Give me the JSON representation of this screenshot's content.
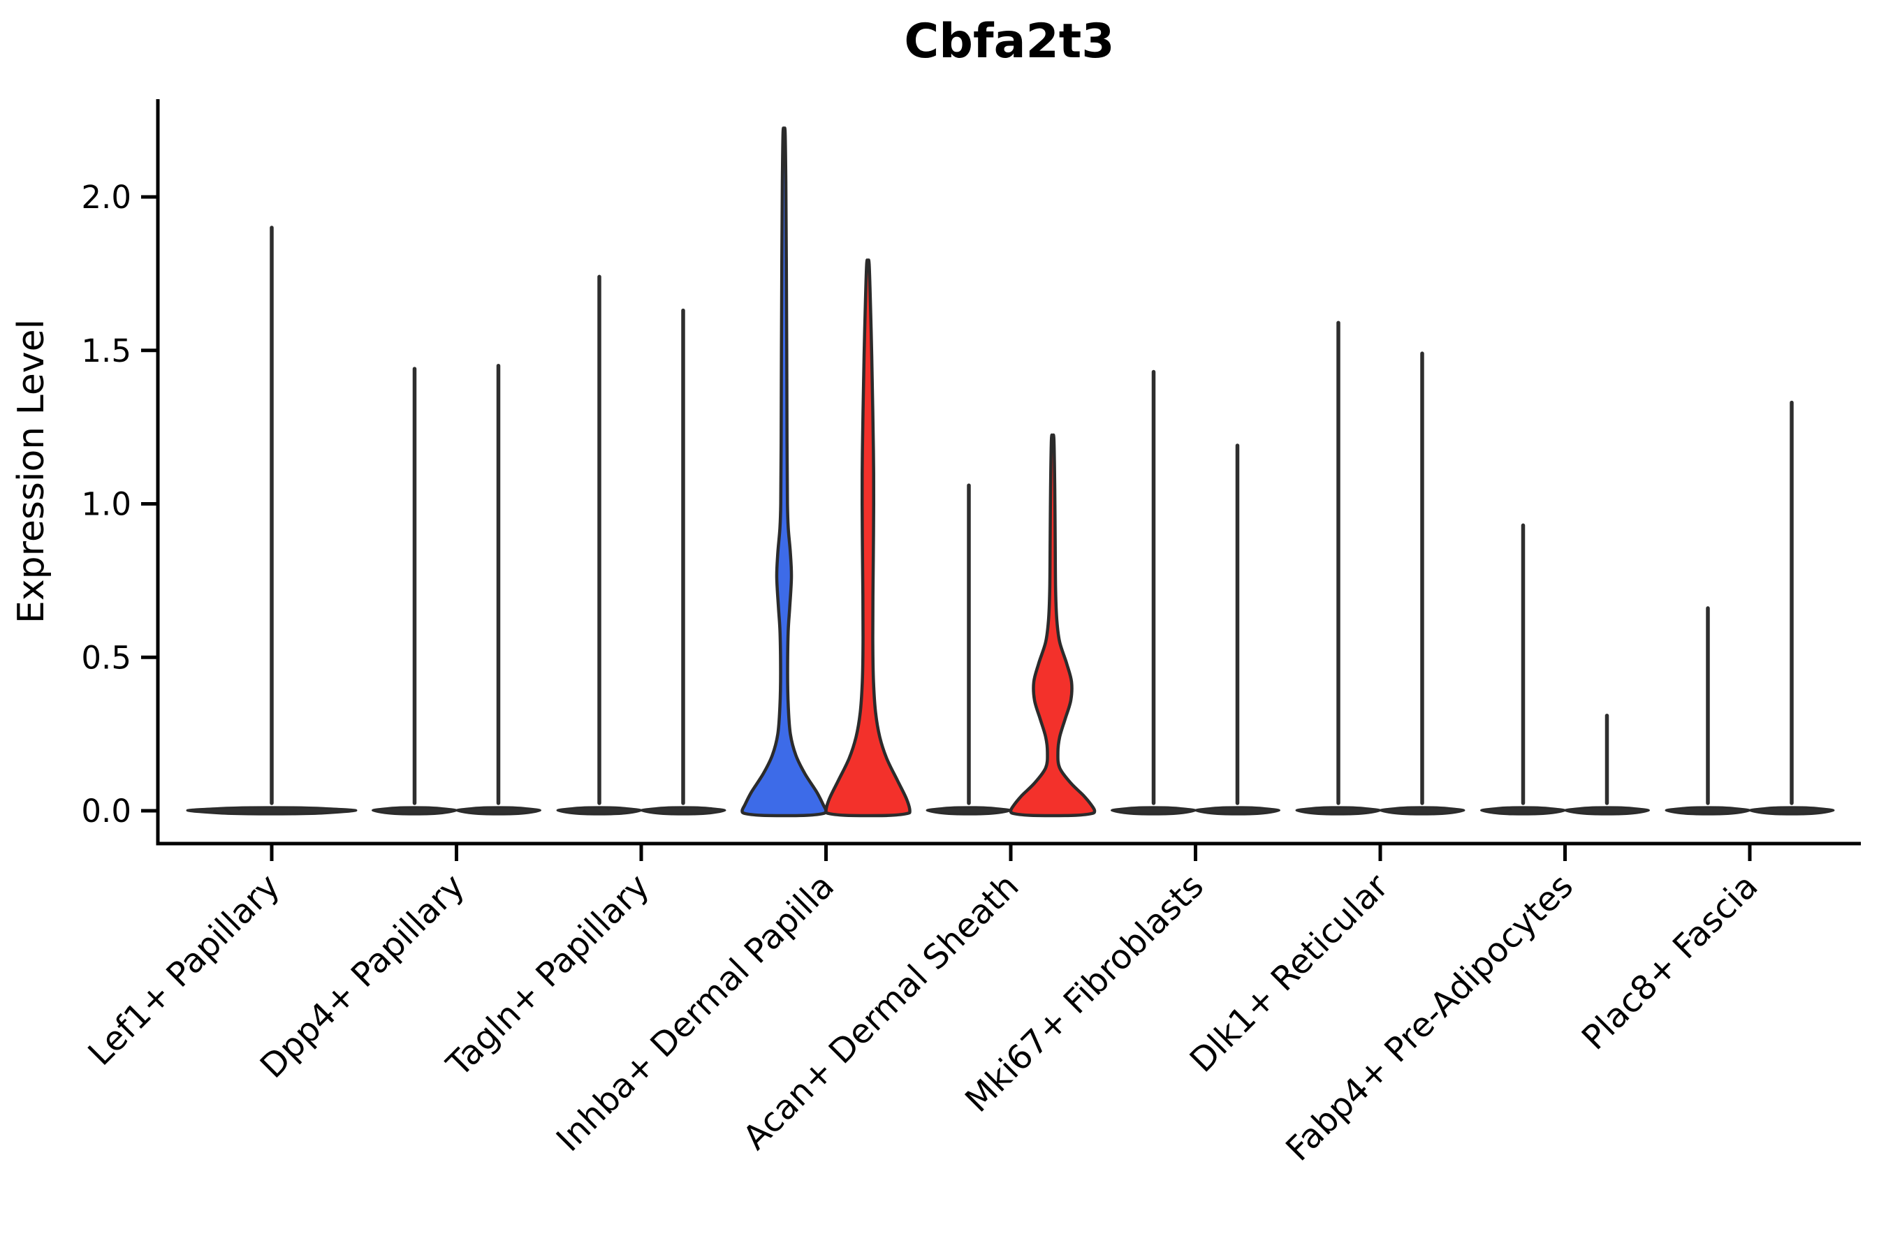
{
  "title": "Cbfa2t3",
  "chart_data": {
    "type": "violin",
    "title": "Cbfa2t3",
    "xlabel": "",
    "ylabel": "Expression Level",
    "ylim": [
      -0.05,
      2.32
    ],
    "grid": "off",
    "legend": "none",
    "ytick_labels": [
      "0.0",
      "0.5",
      "1.0",
      "1.5",
      "2.0"
    ],
    "ytick_values": [
      0.0,
      0.5,
      1.0,
      1.5,
      2.0
    ],
    "colors": {
      "blue_fill": "#3D6BE8",
      "red_fill": "#F3312B",
      "violin_outline": "#2B2B2B",
      "spike_stroke": "#2E2E2E",
      "pancake_fill": "#303030",
      "axis_color": "#000000",
      "text_color": "#000000"
    },
    "categories": [
      "Lef1+ Papillary",
      "Dpp4+ Papillary",
      "Tagln+ Papillary",
      "Inhba+ Dermal Papilla",
      "Acan+ Dermal Sheath",
      "Mki67+ Fibroblasts",
      "Dlk1+ Reticular",
      "Fabp4+ Pre-Adipocytes",
      "Plac8+ Fascia"
    ],
    "groups": [
      {
        "category": "Lef1+ Papillary",
        "violins": [
          {
            "position": "center",
            "type": "spike",
            "peak": 1.9,
            "base_halfwidth": 121
          }
        ]
      },
      {
        "category": "Dpp4+ Papillary",
        "violins": [
          {
            "position": "left",
            "type": "spike",
            "peak": 1.44,
            "base_halfwidth": 60
          },
          {
            "position": "right",
            "type": "spike",
            "peak": 1.45,
            "base_halfwidth": 60
          }
        ]
      },
      {
        "category": "Tagln+ Papillary",
        "violins": [
          {
            "position": "left",
            "type": "spike",
            "peak": 1.74,
            "base_halfwidth": 60
          },
          {
            "position": "right",
            "type": "spike",
            "peak": 1.63,
            "base_halfwidth": 60
          }
        ]
      },
      {
        "category": "Inhba+ Dermal Papilla",
        "violins": [
          {
            "position": "left",
            "type": "violin",
            "peak": 2.21,
            "color": "blue_fill",
            "base_halfwidth": 60,
            "profile": [
              [
                2.21,
                1.5
              ],
              [
                2.05,
                2.5
              ],
              [
                1.8,
                3.2
              ],
              [
                1.5,
                3.8
              ],
              [
                1.2,
                4.2
              ],
              [
                1.0,
                4.8
              ],
              [
                0.92,
                6.0
              ],
              [
                0.84,
                9.0
              ],
              [
                0.76,
                10.5
              ],
              [
                0.66,
                8.0
              ],
              [
                0.58,
                5.8
              ],
              [
                0.45,
                5.0
              ],
              [
                0.34,
                6.0
              ],
              [
                0.25,
                9.0
              ],
              [
                0.18,
                17.0
              ],
              [
                0.12,
                30.0
              ],
              [
                0.06,
                47.0
              ],
              [
                0.02,
                56.0
              ],
              [
                0.0,
                60.0
              ]
            ]
          },
          {
            "position": "right",
            "type": "violin",
            "peak": 1.78,
            "color": "red_fill",
            "base_halfwidth": 60,
            "profile": [
              [
                1.78,
                1.8
              ],
              [
                1.62,
                4.0
              ],
              [
                1.48,
                5.5
              ],
              [
                1.3,
                7.0
              ],
              [
                1.1,
                8.2
              ],
              [
                0.9,
                8.0
              ],
              [
                0.7,
                7.2
              ],
              [
                0.55,
                7.0
              ],
              [
                0.42,
                8.0
              ],
              [
                0.32,
                11.0
              ],
              [
                0.24,
                17.0
              ],
              [
                0.17,
                27.0
              ],
              [
                0.1,
                42.0
              ],
              [
                0.04,
                55.0
              ],
              [
                0.0,
                60.0
              ]
            ]
          }
        ]
      },
      {
        "category": "Acan+ Dermal Sheath",
        "violins": [
          {
            "position": "left",
            "type": "spike",
            "peak": 1.06,
            "base_halfwidth": 60
          },
          {
            "position": "right",
            "type": "violin",
            "peak": 1.21,
            "color": "red_fill",
            "base_halfwidth": 60,
            "profile": [
              [
                1.21,
                1.8
              ],
              [
                1.05,
                3.0
              ],
              [
                0.88,
                3.6
              ],
              [
                0.72,
                4.2
              ],
              [
                0.62,
                6.0
              ],
              [
                0.55,
                10.0
              ],
              [
                0.48,
                20.0
              ],
              [
                0.42,
                27.0
              ],
              [
                0.36,
                26.0
              ],
              [
                0.3,
                18.0
              ],
              [
                0.24,
                10.0
              ],
              [
                0.19,
                7.5
              ],
              [
                0.14,
                10.0
              ],
              [
                0.09,
                26.0
              ],
              [
                0.05,
                44.0
              ],
              [
                0.02,
                55.0
              ],
              [
                0.0,
                60.0
              ]
            ]
          }
        ]
      },
      {
        "category": "Mki67+ Fibroblasts",
        "violins": [
          {
            "position": "left",
            "type": "spike",
            "peak": 1.43,
            "base_halfwidth": 60
          },
          {
            "position": "right",
            "type": "spike",
            "peak": 1.19,
            "base_halfwidth": 60
          }
        ]
      },
      {
        "category": "Dlk1+ Reticular",
        "violins": [
          {
            "position": "left",
            "type": "spike",
            "peak": 1.59,
            "base_halfwidth": 60
          },
          {
            "position": "right",
            "type": "spike",
            "peak": 1.49,
            "base_halfwidth": 60
          }
        ]
      },
      {
        "category": "Fabp4+ Pre-Adipocytes",
        "violins": [
          {
            "position": "left",
            "type": "spike",
            "peak": 0.93,
            "base_halfwidth": 60
          },
          {
            "position": "right",
            "type": "spike",
            "peak": 0.31,
            "base_halfwidth": 60
          }
        ]
      },
      {
        "category": "Plac8+ Fascia",
        "violins": [
          {
            "position": "left",
            "type": "spike",
            "peak": 0.66,
            "base_halfwidth": 60
          },
          {
            "position": "right",
            "type": "spike",
            "peak": 1.33,
            "base_halfwidth": 60
          }
        ]
      }
    ]
  }
}
